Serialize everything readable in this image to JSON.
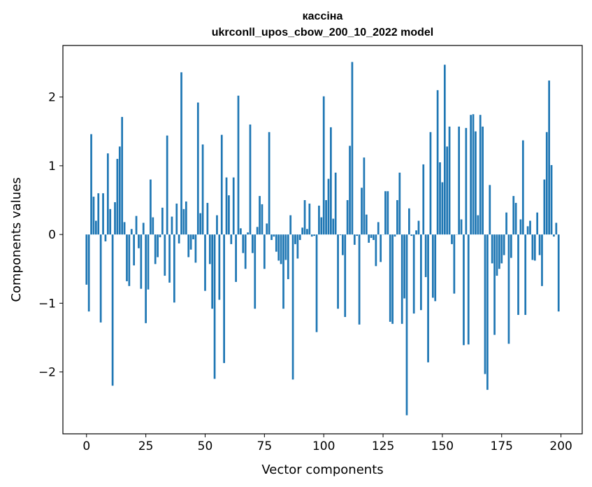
{
  "chart_data": {
    "type": "bar",
    "title_line1": "кассіна",
    "title_line2": "ukrconll_upos_cbow_200_10_2022 model",
    "xlabel": "Vector components",
    "ylabel": "Components values",
    "xlim": [
      -9.95,
      208.95
    ],
    "ylim": [
      -2.9,
      2.75
    ],
    "xticks": [
      0,
      25,
      50,
      75,
      100,
      125,
      150,
      175,
      200
    ],
    "xtick_labels": [
      "0",
      "25",
      "50",
      "75",
      "100",
      "125",
      "150",
      "175",
      "200"
    ],
    "yticks": [
      -2,
      -1,
      0,
      1,
      2
    ],
    "ytick_labels": [
      "−2",
      "−1",
      "0",
      "1",
      "2"
    ],
    "bar_color": "#1f77b4",
    "grid": false,
    "values": [
      -0.73,
      -1.12,
      1.46,
      0.55,
      0.2,
      0.6,
      -1.28,
      0.6,
      -0.1,
      1.18,
      0.37,
      -2.2,
      0.47,
      1.1,
      1.28,
      1.71,
      0.18,
      -0.68,
      -0.75,
      0.08,
      -0.45,
      0.27,
      -0.2,
      -0.79,
      0.17,
      -1.29,
      -0.8,
      0.8,
      0.25,
      -0.43,
      -0.33,
      -0.04,
      0.39,
      -0.6,
      1.44,
      -0.7,
      0.26,
      -0.99,
      0.45,
      -0.13,
      2.36,
      0.37,
      0.48,
      -0.33,
      -0.22,
      -0.07,
      -0.41,
      1.92,
      0.31,
      1.31,
      -0.82,
      0.46,
      -0.43,
      -1.08,
      -2.1,
      0.28,
      -0.95,
      1.45,
      -1.87,
      0.83,
      0.57,
      -0.14,
      0.83,
      -0.69,
      2.02,
      0.09,
      -0.27,
      -0.5,
      0.03,
      1.6,
      -0.27,
      -1.08,
      0.11,
      0.56,
      0.44,
      -0.5,
      0.16,
      1.49,
      -0.08,
      -0.03,
      -0.25,
      -0.38,
      -0.43,
      -1.08,
      -0.37,
      -0.65,
      0.28,
      -2.11,
      -0.14,
      -0.35,
      -0.08,
      0.1,
      0.5,
      0.08,
      0.45,
      -0.03,
      -0.02,
      -1.42,
      0.42,
      0.25,
      2.01,
      0.5,
      0.81,
      1.56,
      0.23,
      0.9,
      -1.08,
      -0.01,
      -0.3,
      -1.2,
      0.5,
      1.29,
      2.51,
      -0.15,
      -0.02,
      -1.31,
      0.68,
      1.12,
      0.29,
      -0.12,
      -0.05,
      -0.08,
      -0.46,
      0.18,
      -0.4,
      0.0,
      0.63,
      0.63,
      -1.27,
      -1.3,
      -0.03,
      0.5,
      0.9,
      -1.3,
      -0.93,
      -2.63,
      0.38,
      -0.02,
      -1.15,
      0.06,
      0.2,
      -1.1,
      1.02,
      -0.62,
      -1.86,
      1.49,
      -0.92,
      -0.97,
      2.1,
      1.05,
      0.76,
      2.47,
      1.28,
      1.57,
      -0.14,
      -0.86,
      0.0,
      1.57,
      0.22,
      -1.61,
      1.55,
      -1.6,
      1.74,
      1.75,
      1.5,
      0.28,
      1.74,
      1.57,
      -2.03,
      -2.26,
      0.72,
      -0.42,
      -1.46,
      -0.6,
      -0.5,
      -0.42,
      -0.3,
      0.32,
      -1.59,
      -0.34,
      0.56,
      0.46,
      -1.17,
      0.22,
      1.37,
      -1.17,
      0.12,
      0.2,
      -0.37,
      -0.38,
      0.32,
      -0.3,
      -0.75,
      0.8,
      1.49,
      2.24,
      1.01,
      -0.03,
      0.17,
      -1.12
    ]
  }
}
